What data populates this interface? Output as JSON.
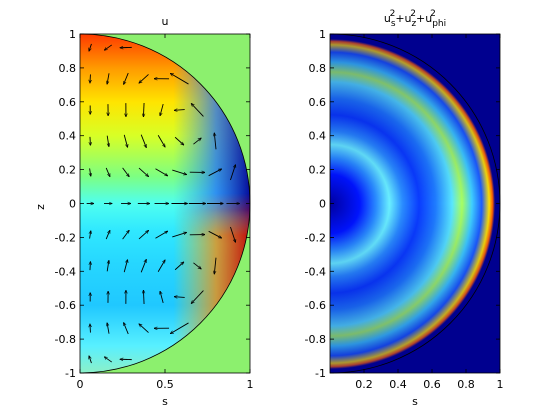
{
  "figure": {
    "background": "#ffffff"
  },
  "chart_data": [
    {
      "type": "heatmap",
      "subtype": "quiver",
      "title": "u",
      "xlabel": "s",
      "ylabel": "z",
      "xlim": [
        0,
        1
      ],
      "ylim": [
        -1,
        1
      ],
      "xticks": [
        "0",
        "0.5",
        "1"
      ],
      "yticks": [
        "1",
        "0.8",
        "0.6",
        "0.4",
        "0.2",
        "0",
        "-0.2",
        "-0.4",
        "-0.6",
        "-0.8",
        "-1"
      ],
      "xtick_values": [
        0,
        0.5,
        1
      ],
      "ytick_values": [
        1,
        0.8,
        0.6,
        0.4,
        0.2,
        0,
        -0.2,
        -0.4,
        -0.6,
        -0.8,
        -1
      ],
      "domain": "half-disk s>=0, s^2+z^2<=1",
      "background_color": "#8cf06e",
      "colormap": "jet",
      "boundary_color": "#000000",
      "vector_field": "arrows (u_s, u_z) on grid, drawn in black"
    },
    {
      "type": "heatmap",
      "title_parts": {
        "base1": "u",
        "sub1": "s",
        "sup1": "2",
        "plus": "+",
        "base2": "u",
        "sub2": "z",
        "sup2": "2",
        "base3": "u",
        "sub3": "phi",
        "sup3": "2"
      },
      "xlabel": "s",
      "ylabel": "",
      "xlim": [
        0,
        1
      ],
      "ylim": [
        -1,
        1
      ],
      "xticks": [
        "0.2",
        "0.4",
        "0.6",
        "0.8",
        "1"
      ],
      "yticks": [
        "1",
        "0.8",
        "0.6",
        "0.4",
        "0.2",
        "0",
        "-0.2",
        "-0.4",
        "-0.6",
        "-0.8",
        "-1"
      ],
      "xtick_values": [
        0.2,
        0.4,
        0.6,
        0.8,
        1
      ],
      "ytick_values": [
        1,
        0.8,
        0.6,
        0.4,
        0.2,
        0,
        -0.2,
        -0.4,
        -0.6,
        -0.8,
        -1
      ],
      "domain": "half-disk s>=0, s^2+z^2<=1",
      "background_color": "#00008f",
      "colormap": "jet",
      "boundary_color": "#000000"
    }
  ]
}
